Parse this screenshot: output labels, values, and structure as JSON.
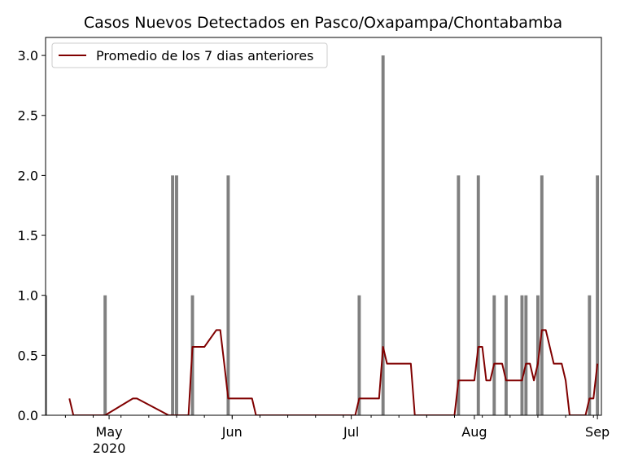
{
  "chart_data": {
    "type": "bar",
    "title": "Casos Nuevos Detectados en Pasco/Oxapampa/Chontabamba",
    "xlabel": "",
    "ylabel": "",
    "ylim": [
      0,
      3.15
    ],
    "xlim": [
      "2020-04-15",
      "2020-09-02"
    ],
    "yticks": [
      "0.0",
      "0.5",
      "1.0",
      "1.5",
      "2.0",
      "2.5",
      "3.0"
    ],
    "xticks": [
      {
        "date": "2020-05-01",
        "label": "May",
        "sublabel": "2020"
      },
      {
        "date": "2020-06-01",
        "label": "Jun",
        "sublabel": ""
      },
      {
        "date": "2020-07-01",
        "label": "Jul",
        "sublabel": ""
      },
      {
        "date": "2020-08-01",
        "label": "Aug",
        "sublabel": ""
      },
      {
        "date": "2020-09-01",
        "label": "Sep",
        "sublabel": ""
      }
    ],
    "grid": false,
    "legend_position": "top-left",
    "bar_color": "#808080",
    "line_color": "#800000",
    "bars": {
      "x": [
        "2020-04-15",
        "2020-04-30",
        "2020-05-17",
        "2020-05-18",
        "2020-05-22",
        "2020-05-31",
        "2020-06-01",
        "2020-07-03",
        "2020-07-09",
        "2020-07-28",
        "2020-08-02",
        "2020-08-06",
        "2020-08-09",
        "2020-08-13",
        "2020-08-14",
        "2020-08-17",
        "2020-08-18",
        "2020-08-30",
        "2020-09-01"
      ],
      "values": [
        1,
        1,
        2,
        2,
        1,
        2,
        0,
        1,
        3,
        2,
        2,
        1,
        1,
        1,
        1,
        1,
        2,
        1,
        2
      ]
    },
    "series": [
      {
        "name": "Promedio de los 7 dias anteriores",
        "type": "line",
        "x": [
          "2020-04-21",
          "2020-04-22",
          "2020-04-30",
          "2020-05-07",
          "2020-05-08",
          "2020-05-16",
          "2020-05-18",
          "2020-05-21",
          "2020-05-22",
          "2020-05-23",
          "2020-05-25",
          "2020-05-28",
          "2020-05-29",
          "2020-05-30",
          "2020-05-31",
          "2020-06-06",
          "2020-06-07",
          "2020-07-02",
          "2020-07-03",
          "2020-07-08",
          "2020-07-09",
          "2020-07-10",
          "2020-07-16",
          "2020-07-17",
          "2020-07-27",
          "2020-07-28",
          "2020-08-01",
          "2020-08-02",
          "2020-08-03",
          "2020-08-04",
          "2020-08-05",
          "2020-08-06",
          "2020-08-08",
          "2020-08-09",
          "2020-08-13",
          "2020-08-14",
          "2020-08-15",
          "2020-08-16",
          "2020-08-17",
          "2020-08-18",
          "2020-08-19",
          "2020-08-21",
          "2020-08-23",
          "2020-08-24",
          "2020-08-25",
          "2020-08-29",
          "2020-08-30",
          "2020-08-31",
          "2020-09-01"
        ],
        "values": [
          0.14,
          0.0,
          0.0,
          0.14,
          0.14,
          0.0,
          0.0,
          0.0,
          0.57,
          0.57,
          0.57,
          0.71,
          0.71,
          0.43,
          0.14,
          0.14,
          0.0,
          0.0,
          0.14,
          0.14,
          0.57,
          0.43,
          0.43,
          0.0,
          0.0,
          0.29,
          0.29,
          0.57,
          0.57,
          0.29,
          0.29,
          0.43,
          0.43,
          0.29,
          0.29,
          0.43,
          0.43,
          0.29,
          0.43,
          0.71,
          0.71,
          0.43,
          0.43,
          0.29,
          0.0,
          0.0,
          0.14,
          0.14,
          0.43
        ]
      }
    ]
  }
}
